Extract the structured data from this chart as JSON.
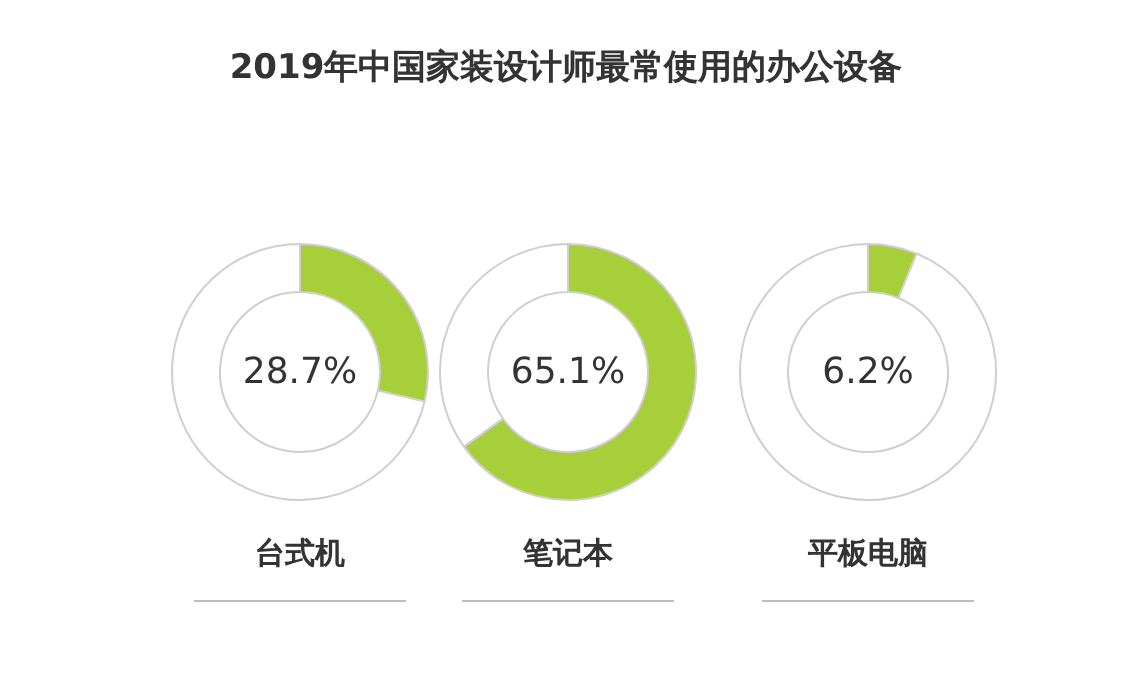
{
  "chart_data": [
    {
      "type": "donut",
      "title": "2019年中国家装设计师最常使用的办公设备",
      "xlabel": "台式机",
      "categories": [
        null,
        null
      ],
      "values": [
        28.7,
        71.3
      ],
      "colors": [
        "#a6cf3a",
        "#ffffff"
      ],
      "annotations": [
        "28.7%"
      ]
    },
    {
      "type": "donut",
      "xlabel": "笔记本",
      "categories": [
        null,
        null
      ],
      "values": [
        65.1,
        34.9
      ],
      "colors": [
        "#a6cf3a",
        "#ffffff"
      ],
      "annotations": [
        "65.1%"
      ]
    },
    {
      "type": "donut",
      "xlabel": "平板电脑",
      "categories": [
        null,
        null
      ],
      "values": [
        6.2,
        93.8
      ],
      "colors": [
        "#a6cf3a",
        "#ffffff"
      ],
      "annotations": [
        "6.2%"
      ]
    }
  ]
}
